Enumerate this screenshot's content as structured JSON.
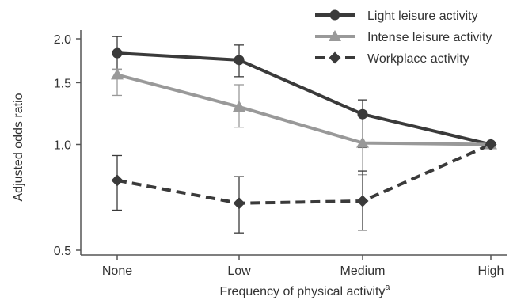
{
  "chart_data": {
    "type": "line",
    "y_scale": "log",
    "categories": [
      "None",
      "Low",
      "Medium",
      "High"
    ],
    "xlabel": "Frequency of physical activity",
    "xlabel_superscript": "a",
    "ylabel": "Adjusted odds ratio",
    "y_ticks": [
      0.5,
      1.0,
      1.5,
      2.0
    ],
    "y_tick_labels": [
      "0.5",
      "1.0",
      "1.5",
      "2.0"
    ],
    "ylim": [
      0.5,
      2.3
    ],
    "grid": false,
    "legend_position": "top-right",
    "series": [
      {
        "name": "Light leisure activity",
        "values": [
          1.82,
          1.74,
          1.22,
          1.0
        ],
        "ci_lower": [
          1.63,
          1.56,
          0.98,
          1.0
        ],
        "ci_upper": [
          2.03,
          1.92,
          1.34,
          1.0
        ],
        "color": "#3a3a3a",
        "marker": "circle",
        "line_style": "solid"
      },
      {
        "name": "Intense leisure activity",
        "values": [
          1.58,
          1.28,
          1.01,
          1.0
        ],
        "ci_lower": [
          1.38,
          1.12,
          0.82,
          1.0
        ],
        "ci_upper": [
          1.64,
          1.48,
          1.22,
          1.0
        ],
        "color": "#999999",
        "marker": "triangle",
        "line_style": "solid"
      },
      {
        "name": "Workplace activity",
        "values": [
          0.79,
          0.68,
          0.69,
          1.0
        ],
        "ci_lower": [
          0.65,
          0.56,
          0.57,
          1.0
        ],
        "ci_upper": [
          0.93,
          0.81,
          0.84,
          1.0
        ],
        "color": "#3a3a3a",
        "marker": "diamond",
        "line_style": "dashed"
      }
    ]
  }
}
